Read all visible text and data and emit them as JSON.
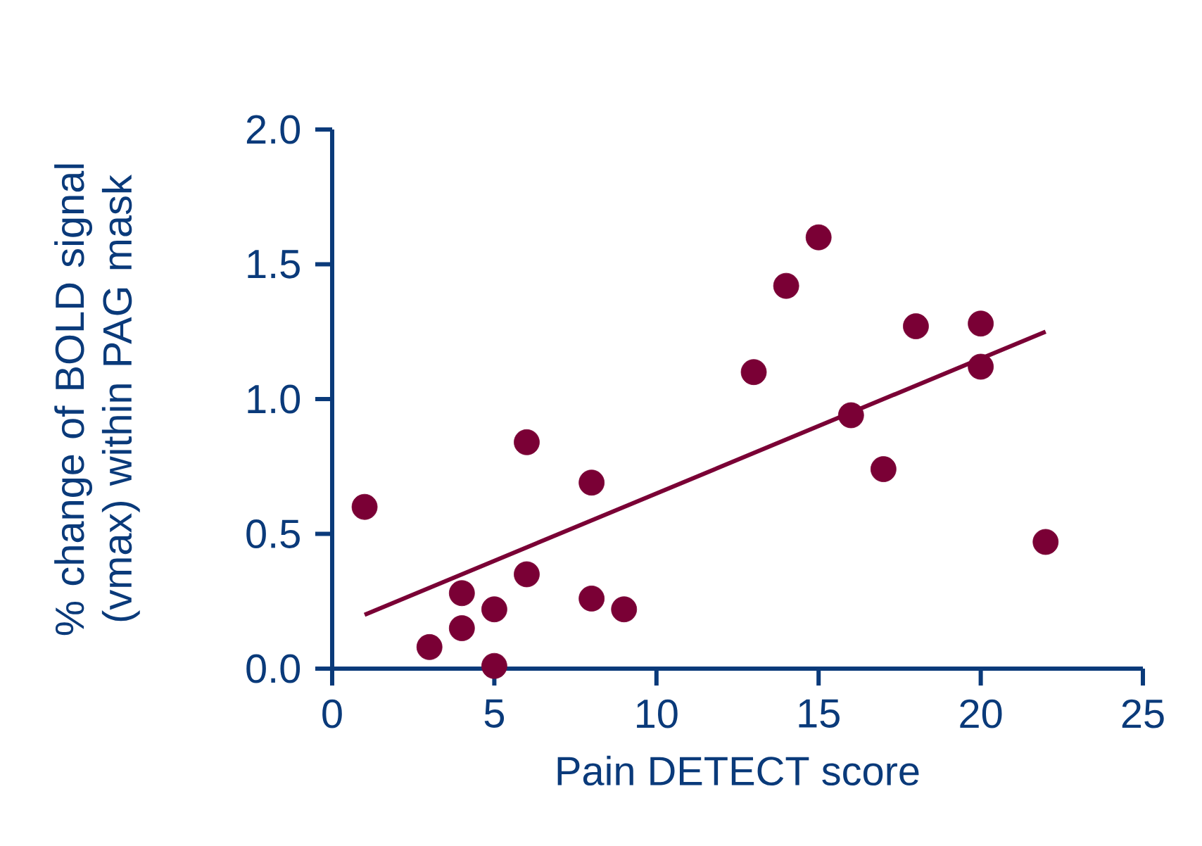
{
  "chart_data": {
    "type": "scatter",
    "xlabel": "Pain DETECT score",
    "ylabel": "% change of BOLD signal (vmax) within PAG mask",
    "xlim": [
      0,
      25
    ],
    "xticks": [
      0,
      5,
      10,
      15,
      20,
      25
    ],
    "ylim": [
      0,
      2.0
    ],
    "yticks": [
      {
        "value": 0,
        "label": "0.0"
      },
      {
        "value": 0.5,
        "label": "0.5"
      },
      {
        "value": 1.0,
        "label": "1.0"
      },
      {
        "value": 1.5,
        "label": "1.5"
      },
      {
        "value": 2.0,
        "label": "2.0"
      }
    ],
    "series": [
      {
        "type": "scatter",
        "marker": "circle",
        "color": "#7a0035",
        "x": [
          1,
          3,
          4,
          4,
          5,
          5,
          6,
          6,
          8,
          8,
          9,
          13,
          14,
          15,
          16,
          17,
          18,
          20,
          20,
          22
        ],
        "values": [
          0.6,
          0.08,
          0.28,
          0.15,
          0.22,
          0.01,
          0.35,
          0.84,
          0.69,
          0.26,
          0.22,
          1.1,
          1.42,
          1.6,
          0.94,
          0.74,
          1.27,
          1.28,
          1.12,
          0.47
        ]
      },
      {
        "type": "line",
        "color": "#7a0035",
        "x": [
          1,
          22
        ],
        "values": [
          0.2,
          1.25
        ]
      }
    ]
  }
}
